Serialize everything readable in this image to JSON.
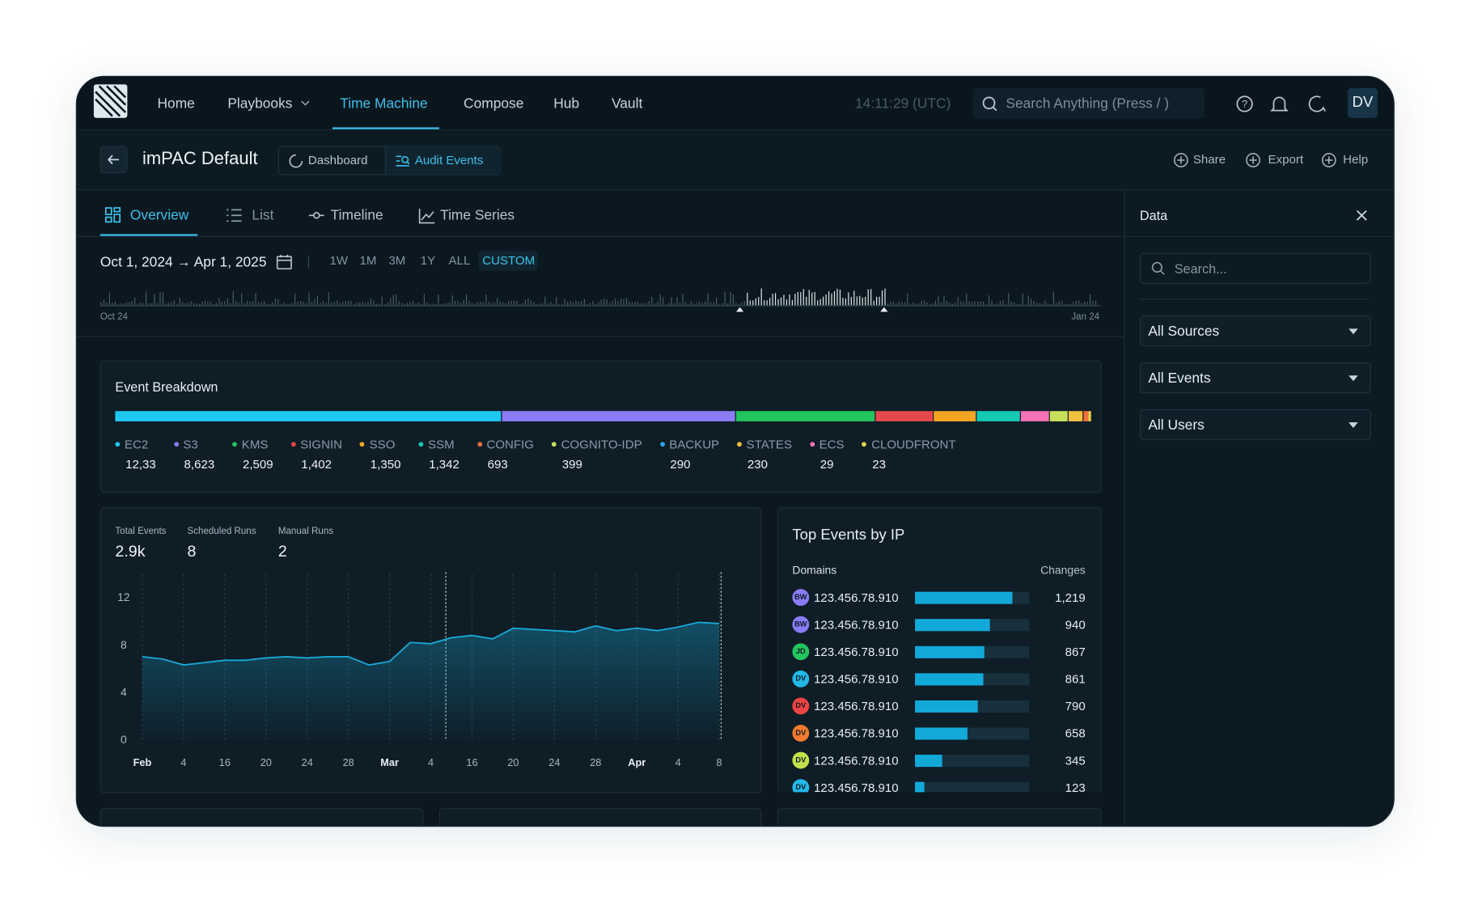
{
  "nav": {
    "items": [
      "Home",
      "Playbooks",
      "Time Machine",
      "Compose",
      "Hub",
      "Vault"
    ],
    "time": "14:11:29 (UTC)",
    "search": "Search Anything (Press / )",
    "avatar": "DV"
  },
  "header": {
    "title": "imPAC Default",
    "views": [
      "Dashboard",
      "Audit Events"
    ],
    "actions": [
      "Share",
      "Export",
      "Help"
    ]
  },
  "tabs": [
    "Overview",
    "List",
    "Timeline",
    "Time Series"
  ],
  "range": {
    "label": "Oct 1, 2024 → Apr 1, 2025",
    "presets": [
      "1W",
      "1M",
      "3M",
      "1Y",
      "ALL",
      "CUSTOM"
    ],
    "start": "Oct 24",
    "end": "Jan 24"
  },
  "breakdown": {
    "title": "Event Breakdown",
    "items": [
      {
        "name": "EC2",
        "value": "12,33",
        "color": "#1ec8f0"
      },
      {
        "name": "S3",
        "value": "8,623",
        "color": "#8b7cf6"
      },
      {
        "name": "KMS",
        "value": "2,509",
        "color": "#22c55e"
      },
      {
        "name": "SIGNIN",
        "value": "1,402",
        "color": "#e5484d"
      },
      {
        "name": "SSO",
        "value": "1,350",
        "color": "#f5a524"
      },
      {
        "name": "SSM",
        "value": "1,342",
        "color": "#14c8b4"
      },
      {
        "name": "CONFIG",
        "value": "693",
        "color": "#f0703c"
      },
      {
        "name": "COGNITO-IDP",
        "value": "399",
        "color": "#c6e05a"
      },
      {
        "name": "BACKUP",
        "value": "290",
        "color": "#2ba3e8"
      },
      {
        "name": "STATES",
        "value": "230",
        "color": "#f0c040"
      },
      {
        "name": "ECS",
        "value": "29",
        "color": "#f472b6"
      },
      {
        "name": "CLOUDFRONT",
        "value": "23",
        "color": "#e8d04a"
      }
    ]
  },
  "stats": [
    {
      "label": "Total Events",
      "value": "2.9k"
    },
    {
      "label": "Scheduled Runs",
      "value": "8"
    },
    {
      "label": "Manual Runs",
      "value": "2"
    }
  ],
  "chart_data": {
    "type": "line",
    "color": "#1aa8d6",
    "categories": [
      "Feb",
      null,
      "4",
      null,
      "16",
      null,
      "20",
      null,
      "24",
      null,
      "28",
      null,
      "Mar",
      null,
      "4",
      null,
      "16",
      null,
      "20",
      null,
      "24",
      null,
      "28",
      null,
      "Apr",
      null,
      "4",
      null,
      "8"
    ],
    "values": [
      7.0,
      6.8,
      6.3,
      6.5,
      6.7,
      6.7,
      6.9,
      7.0,
      6.9,
      7.0,
      7.0,
      6.3,
      6.6,
      8.2,
      8.1,
      8.6,
      8.8,
      8.5,
      9.4,
      9.3,
      9.2,
      9.1,
      9.6,
      9.2,
      9.4,
      9.2,
      9.5,
      9.9,
      9.8
    ],
    "ylim": [
      0,
      12
    ],
    "yticks": [
      0,
      4,
      8,
      12
    ]
  },
  "top_events": {
    "title": "Top Events by IP",
    "columns": [
      "Domains",
      "Changes"
    ],
    "rows": [
      {
        "initials": "BW",
        "ip": "123.456.78.910",
        "value": 1219,
        "label": "1,219",
        "color": "#8b7cf6"
      },
      {
        "initials": "BW",
        "ip": "123.456.78.910",
        "value": 940,
        "label": "940",
        "color": "#8b7cf6"
      },
      {
        "initials": "JD",
        "ip": "123.456.78.910",
        "value": 867,
        "label": "867",
        "color": "#22c55e"
      },
      {
        "initials": "DV",
        "ip": "123.456.78.910",
        "value": 861,
        "label": "861",
        "color": "#22b8e8"
      },
      {
        "initials": "DV",
        "ip": "123.456.78.910",
        "value": 790,
        "label": "790",
        "color": "#ef4444"
      },
      {
        "initials": "DV",
        "ip": "123.456.78.910",
        "value": 658,
        "label": "658",
        "color": "#f07a2e"
      },
      {
        "initials": "DV",
        "ip": "123.456.78.910",
        "value": 345,
        "label": "345",
        "color": "#c3e04a"
      },
      {
        "initials": "DV",
        "ip": "123.456.78.910",
        "value": 123,
        "label": "123",
        "color": "#22b8e8"
      }
    ]
  },
  "panel": {
    "title": "Data",
    "search": "Search...",
    "filters": [
      "All Sources",
      "All Events",
      "All Users"
    ]
  }
}
